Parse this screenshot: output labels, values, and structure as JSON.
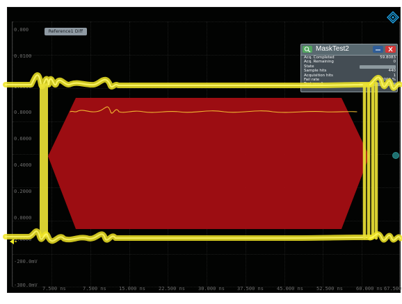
{
  "display": {
    "reference_label": "Reference1 Diff"
  },
  "scope_axis": {
    "y_labels": [
      "0.000",
      "0.0100",
      "1.0000",
      "0.8000",
      "0.6000",
      "0.4000",
      "0.2000",
      "0.0000",
      "0.0000",
      "-200.0mV",
      "-300.0mV"
    ],
    "x_labels": [
      "7.500 ns",
      "7.500 ns",
      "15.000 ns",
      "22.500 ns",
      "30.000 ns",
      "37.500 ns",
      "45.000 ns",
      "52.500 ns",
      "60.000 ns",
      "67.500 ns"
    ]
  },
  "mask_test": {
    "title": "MaskTest2",
    "icon": "magnifier-icon",
    "rows": [
      {
        "label": "Acq. Completed",
        "value": "59.8083"
      },
      {
        "label": "Acq. Remaining",
        "value": "0"
      },
      {
        "label": "State",
        "value": ""
      },
      {
        "label": "Sample hits",
        "value": "440"
      },
      {
        "label": "Acquisition hits",
        "value": "1"
      },
      {
        "label": "Fail rate",
        "value": "0.00000 % "
      },
      {
        "label": "Test result",
        "value": ""
      }
    ]
  },
  "colors": {
    "background": "#020302",
    "trace": "#f2ee24",
    "mask": "#9f0d12",
    "dialog": "#4a545b",
    "accent": "#1ea5e8"
  }
}
